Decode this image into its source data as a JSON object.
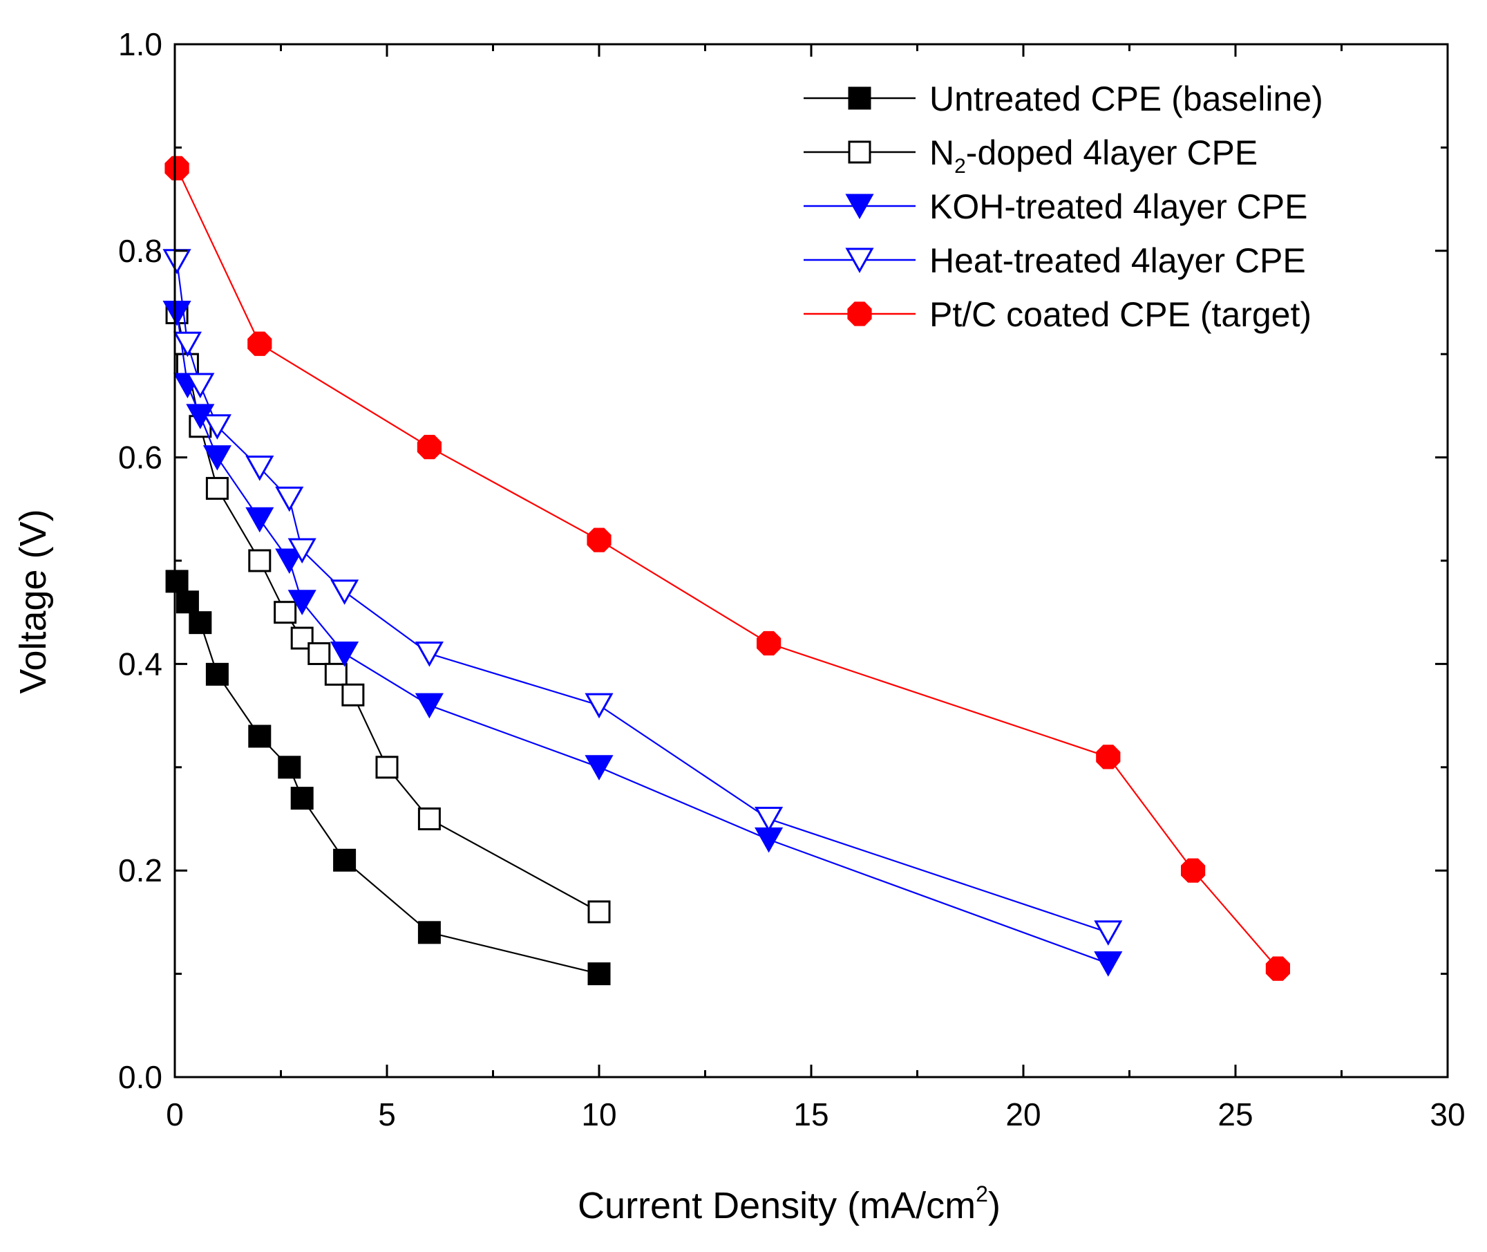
{
  "chart_data": {
    "type": "line",
    "title": "",
    "xlabel": "Current Density (mA/cm",
    "xlabel_sup": "2",
    "xlabel_end": ")",
    "ylabel": "Voltage (V)",
    "xlim": [
      0,
      30
    ],
    "ylim": [
      0,
      1.0
    ],
    "xticks": [
      "0",
      "5",
      "10",
      "15",
      "20",
      "25",
      "30"
    ],
    "xtick_values": [
      0,
      5,
      10,
      15,
      20,
      25,
      30
    ],
    "yticks": [
      "0.0",
      "0.2",
      "0.4",
      "0.6",
      "0.8",
      "1.0"
    ],
    "ytick_values": [
      0,
      0.2,
      0.4,
      0.6,
      0.8,
      1.0
    ],
    "grid": false,
    "legend_position": "top-right",
    "series": [
      {
        "name": "Untreated CPE (baseline)",
        "color": "#000000",
        "marker": "square",
        "filled": true,
        "x": [
          0.05,
          0.3,
          0.6,
          1.0,
          2.0,
          2.7,
          3.0,
          4.0,
          6.0,
          10.0
        ],
        "y": [
          0.48,
          0.46,
          0.44,
          0.39,
          0.33,
          0.3,
          0.27,
          0.21,
          0.14,
          0.1
        ]
      },
      {
        "name": "N2-doped 4layer CPE",
        "label_parts": [
          "N",
          "2",
          "-doped 4layer CPE"
        ],
        "color": "#000000",
        "marker": "square",
        "filled": false,
        "x": [
          0.05,
          0.3,
          0.6,
          1.0,
          2.0,
          2.6,
          3.0,
          3.4,
          3.8,
          4.2,
          5.0,
          6.0,
          10.0
        ],
        "y": [
          0.74,
          0.69,
          0.63,
          0.57,
          0.5,
          0.45,
          0.425,
          0.41,
          0.39,
          0.37,
          0.3,
          0.25,
          0.16
        ]
      },
      {
        "name": "KOH-treated 4layer CPE",
        "color": "#0000ff",
        "marker": "triangle-down",
        "filled": true,
        "x": [
          0.05,
          0.3,
          0.6,
          1.0,
          2.0,
          2.7,
          3.0,
          4.0,
          6.0,
          10.0,
          14.0,
          22.0
        ],
        "y": [
          0.74,
          0.67,
          0.64,
          0.6,
          0.54,
          0.5,
          0.46,
          0.41,
          0.36,
          0.3,
          0.23,
          0.11
        ]
      },
      {
        "name": "Heat-treated 4layer CPE",
        "color": "#0000ff",
        "marker": "triangle-down",
        "filled": false,
        "x": [
          0.05,
          0.3,
          0.6,
          1.0,
          2.0,
          2.7,
          3.0,
          4.0,
          6.0,
          10.0,
          14.0,
          22.0
        ],
        "y": [
          0.79,
          0.71,
          0.67,
          0.63,
          0.59,
          0.56,
          0.51,
          0.47,
          0.41,
          0.36,
          0.25,
          0.14
        ]
      },
      {
        "name": "Pt/C coated CPE (target)",
        "color": "#ff0000",
        "marker": "octagon",
        "filled": true,
        "x": [
          0.05,
          2.0,
          6.0,
          10.0,
          14.0,
          22.0,
          24.0,
          26.0
        ],
        "y": [
          0.88,
          0.71,
          0.61,
          0.52,
          0.42,
          0.31,
          0.2,
          0.105
        ]
      }
    ]
  }
}
